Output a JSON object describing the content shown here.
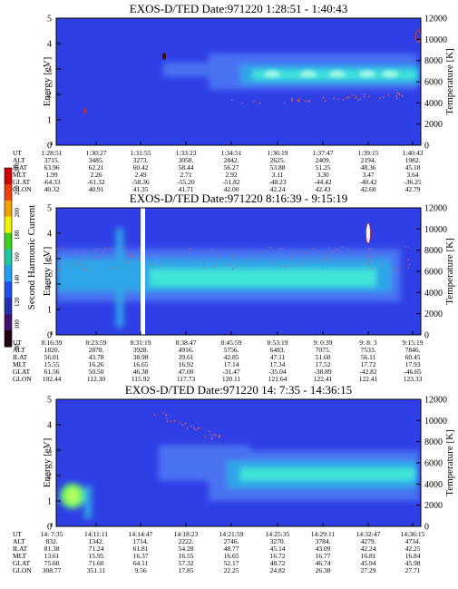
{
  "colors": {
    "background_field": "#2f3fe6",
    "faint_band": "#4a72f2",
    "mid_band": "#2fa5e8",
    "strong_band": "#3fe6d8",
    "peak": "#9ff7e6",
    "dots": "#d85a5a",
    "frame": "#000000"
  },
  "colorbar": {
    "label": "Second Harmonic Current",
    "ticks": [
      "80",
      "100",
      "120",
      "140",
      "160",
      "180",
      "200",
      "220",
      "240"
    ]
  },
  "chart_data": [
    {
      "type": "heatmap",
      "title": "EXOS-D/TED   Date:971220   1:28:51 - 1:40:43",
      "ylabel": "Energy [eV]",
      "y2label": "Temperature [K]",
      "ylim": [
        0,
        5
      ],
      "y2lim": [
        0,
        12000
      ],
      "yticks": [
        "0",
        "1",
        "2",
        "3",
        "4",
        "5"
      ],
      "y2ticks": [
        "0",
        "2000",
        "4000",
        "6000",
        "8000",
        "10000",
        "12000"
      ],
      "orbit_labels": [
        "UT",
        "ALT",
        "ILAT",
        "MLT",
        "GLAT",
        "GLON"
      ],
      "orbit_table": [
        [
          "1:28:51",
          "1:30:27",
          "1:31:55",
          "1:33:23",
          "1:34:51",
          "1:36:19",
          "1:37:47",
          "1:39:15",
          "1:40:43"
        ],
        [
          "3715.",
          "3485.",
          "3273.",
          "3058.",
          "2842.",
          "2625.",
          "2409.",
          "2194.",
          "1982."
        ],
        [
          "63.96",
          "62.21",
          "60.42",
          "58.44",
          "56.27",
          "53.88",
          "51.25",
          "48.36",
          "45.18"
        ],
        [
          "1.99",
          "2.26",
          "2.49",
          "2.71",
          "2.92",
          "3.11",
          "3.30",
          "3.47",
          "3.64"
        ],
        [
          "-64.33",
          "-61.32",
          "-58.36",
          "-55.20",
          "-51.82",
          "-48.23",
          "-44.42",
          "-40.42",
          "-36.25"
        ],
        [
          "40.32",
          "40.91",
          "41.35",
          "41.71",
          "42.00",
          "42.24",
          "42.43",
          "42.60",
          "42.79"
        ]
      ]
    },
    {
      "type": "heatmap",
      "title": "EXOS-D/TED   Date:971220   8:16:39 - 9:15:19",
      "ylabel": "Energy [eV]",
      "y2label": "Temperature [K]",
      "ylim": [
        0,
        5
      ],
      "y2lim": [
        0,
        12000
      ],
      "yticks": [
        "0",
        "1",
        "2",
        "3",
        "4",
        "5"
      ],
      "y2ticks": [
        "0",
        "2000",
        "4000",
        "6000",
        "8000",
        "10000",
        "12000"
      ],
      "orbit_labels": [
        "UT",
        "ALT",
        "ILAT",
        "MLT",
        "GLAT",
        "GLON"
      ],
      "orbit_table": [
        [
          "8:16:39",
          "8:23:59",
          "8:31:19",
          "8:38:47",
          "8:45:59",
          "8:53:19",
          "9: 0:39",
          "9: 8: 3",
          "9:15:19"
        ],
        [
          "1820.",
          "2878.",
          "3928.",
          "4916.",
          "5756.",
          "6483.",
          "7075.",
          "7533.",
          "7846."
        ],
        [
          "56.01",
          "43.78",
          "38.98",
          "39.61",
          "42.85",
          "47.11",
          "51.60",
          "56.11",
          "60.45"
        ],
        [
          "15.55",
          "16.26",
          "16.65",
          "16.92",
          "17.14",
          "17.34",
          "17.52",
          "17.72",
          "17.93"
        ],
        [
          "61.56",
          "50.50",
          "46.38",
          "47.00",
          "-31.47",
          "-35.04",
          "-38.89",
          "-42.82",
          "-46.65"
        ],
        [
          "102.44",
          "112.30",
          "115.92",
          "117.73",
          "120.11",
          "121.64",
          "122.41",
          "122.41",
          "123.33"
        ]
      ]
    },
    {
      "type": "heatmap",
      "title": "EXOS-D/TED   Date:971220   14: 7:35 - 14:36:15",
      "ylabel": "Energy [eV]",
      "y2label": "Temperature [K]",
      "ylim": [
        0,
        5
      ],
      "y2lim": [
        0,
        12000
      ],
      "yticks": [
        "0",
        "1",
        "2",
        "3",
        "4",
        "5"
      ],
      "y2ticks": [
        "0",
        "2000",
        "4000",
        "6000",
        "8000",
        "10000",
        "12000"
      ],
      "orbit_labels": [
        "UT",
        "ALT",
        "ILAT",
        "MLT",
        "GLAT",
        "GLON"
      ],
      "orbit_table": [
        [
          "14: 7:35",
          "14:11:11",
          "14:14:47",
          "14:18:23",
          "14:21:59",
          "14:25:35",
          "14:29:11",
          "14:32:47",
          "14:36:15"
        ],
        [
          "832.",
          "1342.",
          "1714.",
          "2222.",
          "2746.",
          "3270.",
          "3784.",
          "4279.",
          "4734."
        ],
        [
          "81.38",
          "71.24",
          "61.81",
          "54.28",
          "48.77",
          "45.14",
          "43.09",
          "42.24",
          "42.25"
        ],
        [
          "13.61",
          "15.95",
          "16.37",
          "16.55",
          "16.65",
          "16.72",
          "16.77",
          "16.81",
          "16.84"
        ],
        [
          "75.60",
          "71.60",
          "64.11",
          "57.32",
          "52.17",
          "48.72",
          "46.74",
          "45.94",
          "45.98"
        ],
        [
          "308.77",
          "351.11",
          "9.56",
          "17.85",
          "22.25",
          "24.82",
          "26.38",
          "27.29",
          "27.71"
        ]
      ]
    }
  ]
}
